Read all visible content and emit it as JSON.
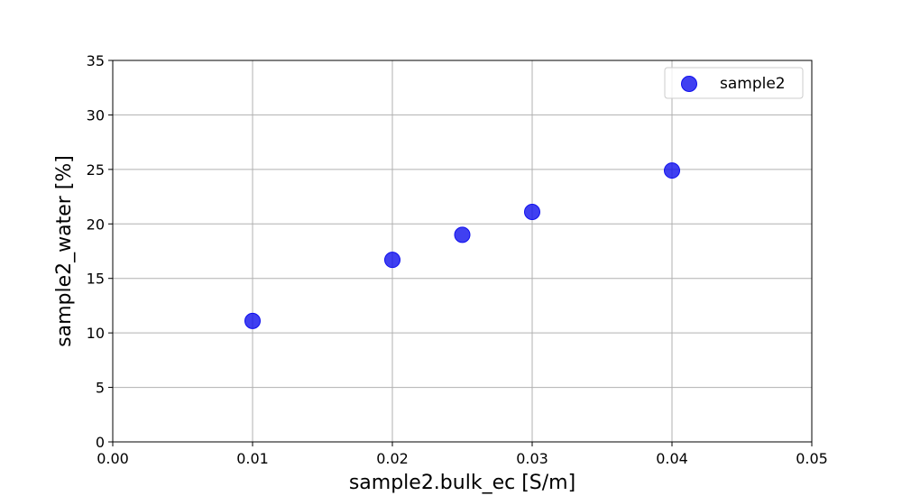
{
  "chart_data": {
    "type": "scatter",
    "xlabel": "sample2.bulk_ec [S/m]",
    "ylabel": "sample2_water [%]",
    "xlim": [
      0.0,
      0.05
    ],
    "ylim": [
      0,
      35
    ],
    "x_ticks": [
      "0.00",
      "0.01",
      "0.02",
      "0.03",
      "0.04",
      "0.05"
    ],
    "y_ticks": [
      "0",
      "5",
      "10",
      "15",
      "20",
      "25",
      "30",
      "35"
    ],
    "grid": true,
    "legend_position": "top-right",
    "series": [
      {
        "name": "sample2",
        "color": "#1010ee",
        "points": [
          {
            "x": 0.01,
            "y": 11.1
          },
          {
            "x": 0.02,
            "y": 16.7
          },
          {
            "x": 0.025,
            "y": 19.0
          },
          {
            "x": 0.03,
            "y": 21.1
          },
          {
            "x": 0.04,
            "y": 24.9
          }
        ]
      }
    ]
  }
}
